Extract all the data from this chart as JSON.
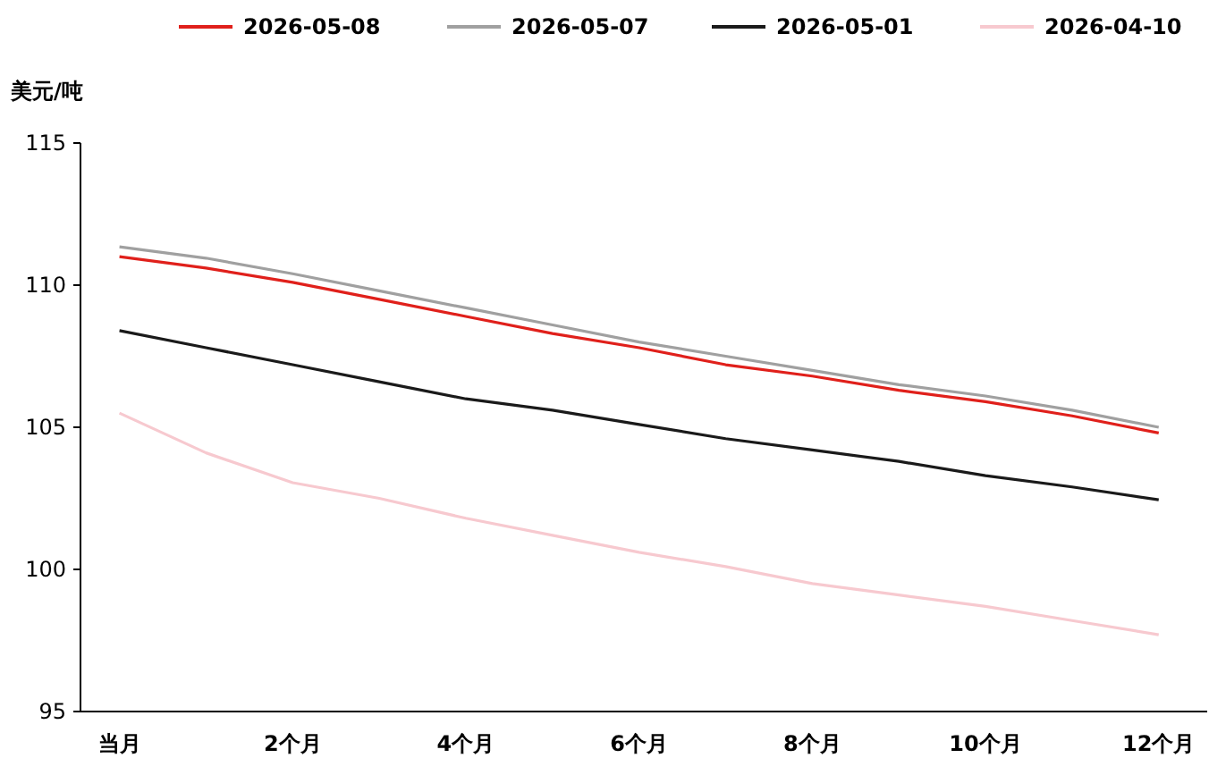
{
  "chart_data": {
    "type": "line",
    "ylabel": "美元/吨",
    "categories": [
      "当月",
      null,
      "2个月",
      null,
      "4个月",
      null,
      "6个月",
      null,
      "8个月",
      null,
      "10个月",
      null,
      "12个月"
    ],
    "series": [
      {
        "name": "2026-05-08",
        "color": "#e0201b",
        "values": [
          111.0,
          110.6,
          110.1,
          109.5,
          108.9,
          108.3,
          107.8,
          107.2,
          106.8,
          106.3,
          105.9,
          105.4,
          104.8
        ]
      },
      {
        "name": "2026-05-07",
        "color": "#a0a0a0",
        "values": [
          111.35,
          110.95,
          110.4,
          109.8,
          109.2,
          108.6,
          108.0,
          107.5,
          107.0,
          106.5,
          106.1,
          105.6,
          105.0
        ]
      },
      {
        "name": "2026-05-01",
        "color": "#1a1a1a",
        "values": [
          108.4,
          107.8,
          107.2,
          106.6,
          106.0,
          105.6,
          105.1,
          104.6,
          104.2,
          103.8,
          103.3,
          102.9,
          102.45
        ]
      },
      {
        "name": "2026-04-10",
        "color": "#f7c9cf",
        "values": [
          105.5,
          104.1,
          103.05,
          102.5,
          101.8,
          101.2,
          100.6,
          100.1,
          99.5,
          99.1,
          98.7,
          98.2,
          97.7
        ]
      }
    ],
    "ylim": [
      95,
      115
    ],
    "yticks": [
      95,
      100,
      105,
      110,
      115
    ],
    "legend": "top",
    "line_style": "solid",
    "marker": "none"
  }
}
